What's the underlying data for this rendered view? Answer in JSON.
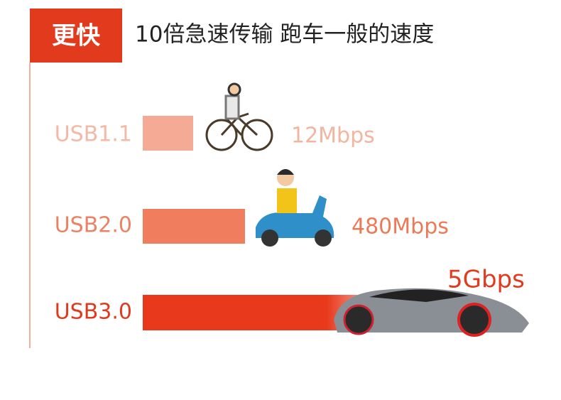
{
  "header": {
    "badge": "更快",
    "title": "10倍急速传输 跑车一般的速度"
  },
  "rows": [
    {
      "label": "USB1.1",
      "speed": "12Mbps"
    },
    {
      "label": "USB2.0",
      "speed": "480Mbps"
    },
    {
      "label": "USB3.0",
      "speed": "5Gbps"
    }
  ]
}
